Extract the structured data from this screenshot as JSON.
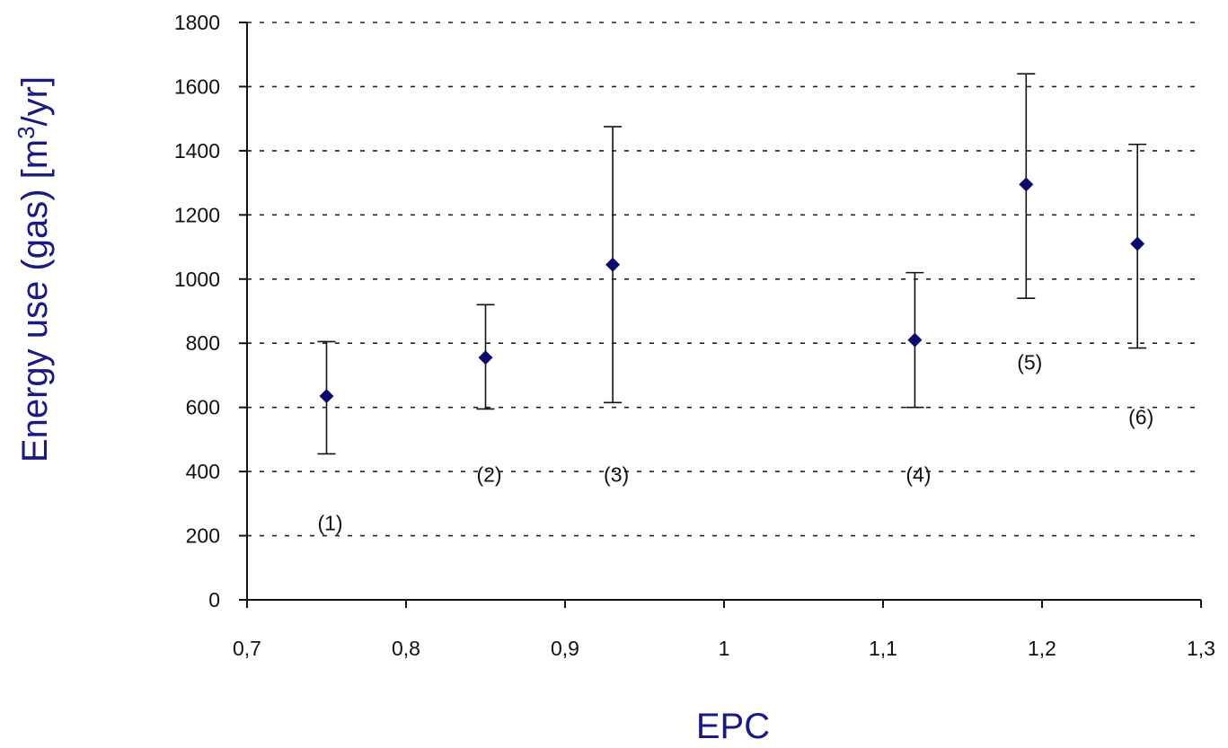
{
  "chart_data": {
    "type": "scatter",
    "xlabel": "EPC",
    "ylabel_prefix": "Energy use (gas) [m",
    "ylabel_superscript": "3",
    "ylabel_suffix": "/yr]",
    "xlim": [
      0.7,
      1.3
    ],
    "ylim": [
      0,
      1800
    ],
    "x_ticks": [
      "0,7",
      "0,8",
      "0,9",
      "1",
      "1,1",
      "1,2",
      "1,3"
    ],
    "x_tick_values": [
      0.7,
      0.8,
      0.9,
      1.0,
      1.1,
      1.2,
      1.3
    ],
    "y_ticks": [
      "0",
      "200",
      "400",
      "600",
      "800",
      "1000",
      "1200",
      "1400",
      "1600",
      "1800"
    ],
    "y_tick_values": [
      0,
      200,
      400,
      600,
      800,
      1000,
      1200,
      1400,
      1600,
      1800
    ],
    "grid": "horizontal dashed",
    "marker_color": "#0a0a6e",
    "points": [
      {
        "label": "(1)",
        "x": 0.75,
        "y": 635,
        "low": 455,
        "high": 805,
        "label_y": 240
      },
      {
        "label": "(2)",
        "x": 0.85,
        "y": 755,
        "low": 595,
        "high": 920,
        "label_y": 390
      },
      {
        "label": "(3)",
        "x": 0.93,
        "y": 1045,
        "low": 615,
        "high": 1475,
        "label_y": 390
      },
      {
        "label": "(4)",
        "x": 1.12,
        "y": 810,
        "low": 600,
        "high": 1020,
        "label_y": 390
      },
      {
        "label": "(5)",
        "x": 1.19,
        "y": 1295,
        "low": 940,
        "high": 1640,
        "label_y": 740
      },
      {
        "label": "(6)",
        "x": 1.26,
        "y": 1110,
        "low": 785,
        "high": 1420,
        "label_y": 570
      }
    ]
  }
}
